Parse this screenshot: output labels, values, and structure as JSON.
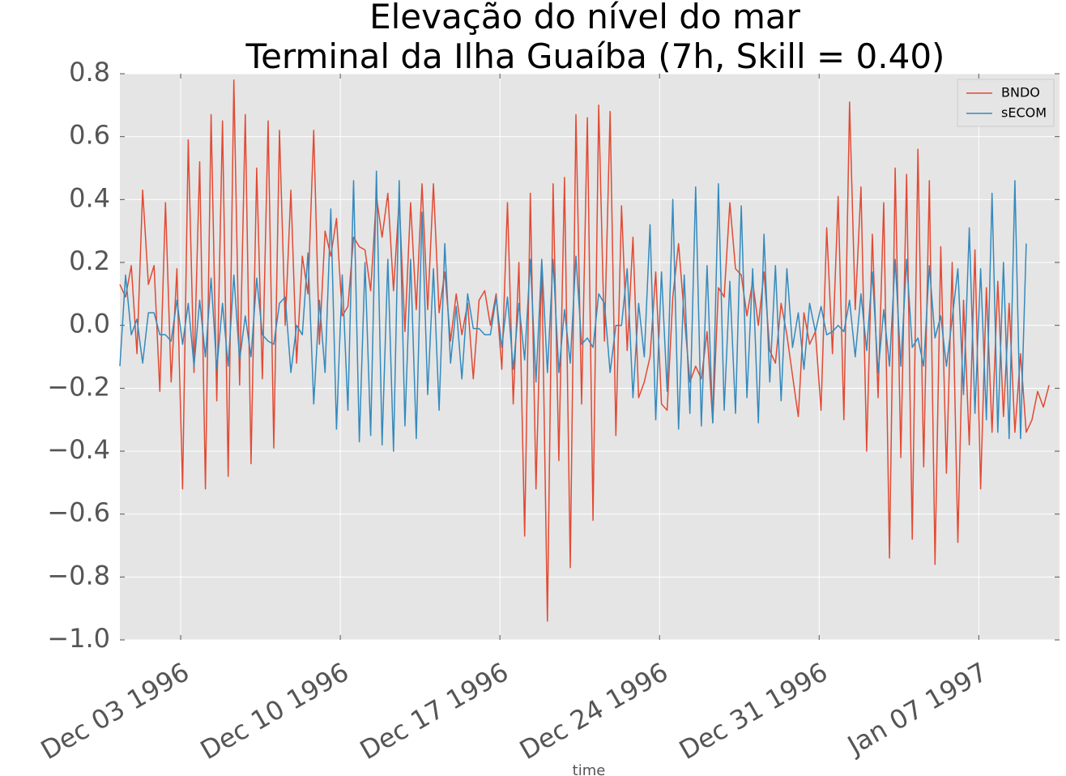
{
  "chart_data": {
    "type": "line",
    "title": [
      "Elevação do nível do mar",
      "Terminal da Ilha Guaíba (7h, Skill = 0.40)"
    ],
    "xlabel": "time",
    "ylabel": "",
    "x_type": "date",
    "xlim": [
      "1996-11-30T08:00",
      "1997-01-10T13:00"
    ],
    "ylim": [
      -1.0,
      0.8
    ],
    "yticks": [
      0.8,
      0.6,
      0.4,
      0.2,
      0.0,
      -0.2,
      -0.4,
      -0.6,
      -0.8,
      -1.0
    ],
    "ytick_labels": [
      "0.8",
      "0.6",
      "0.4",
      "0.2",
      "0.0",
      "−0.2",
      "−0.4",
      "−0.6",
      "−0.8",
      "−1.0"
    ],
    "xticks": [
      "1996-12-03",
      "1996-12-10",
      "1996-12-17",
      "1996-12-24",
      "1996-12-31",
      "1997-01-07"
    ],
    "xtick_labels": [
      "Dec 03 1996",
      "Dec 10 1996",
      "Dec 17 1996",
      "Dec 24 1996",
      "Dec 31 1996",
      "Jan 07 1997"
    ],
    "grid": true,
    "legend_position": "top-right",
    "x_start": "1996-11-30T08:00",
    "x_step_hours": 6,
    "series": [
      {
        "name": "BNDO",
        "color": "#E24A33",
        "values": [
          0.13,
          0.09,
          0.19,
          -0.09,
          0.43,
          0.13,
          0.19,
          -0.21,
          0.39,
          -0.18,
          0.18,
          -0.52,
          0.59,
          -0.15,
          0.52,
          -0.52,
          0.67,
          -0.24,
          0.65,
          -0.48,
          0.78,
          -0.19,
          0.67,
          -0.44,
          0.5,
          -0.17,
          0.65,
          -0.39,
          0.62,
          -0.0,
          0.43,
          -0.12,
          0.22,
          0.1,
          0.62,
          -0.06,
          0.3,
          0.22,
          0.34,
          0.03,
          0.06,
          0.28,
          0.25,
          0.24,
          0.11,
          0.41,
          0.28,
          0.42,
          0.11,
          0.4,
          -0.02,
          0.39,
          0.05,
          0.45,
          0.05,
          0.45,
          0.04,
          0.17,
          -0.05,
          0.1,
          -0.03,
          0.07,
          -0.17,
          0.08,
          0.11,
          0.0,
          0.1,
          -0.14,
          0.39,
          -0.25,
          0.2,
          -0.67,
          0.42,
          -0.52,
          0.2,
          -0.94,
          0.45,
          -0.43,
          0.47,
          -0.77,
          0.67,
          -0.25,
          0.66,
          -0.62,
          0.7,
          -0.05,
          0.68,
          -0.35,
          0.38,
          -0.08,
          0.28,
          -0.23,
          -0.18,
          -0.1,
          0.17,
          -0.25,
          -0.27,
          0.09,
          0.26,
          0.03,
          -0.18,
          -0.13,
          -0.17,
          -0.02,
          -0.31,
          0.12,
          0.09,
          0.39,
          0.18,
          0.16,
          0.03,
          0.14,
          0.0,
          0.17,
          -0.08,
          -0.12,
          0.07,
          -0.03,
          -0.16,
          -0.29,
          0.04,
          -0.06,
          -0.02,
          -0.27,
          0.31,
          -0.09,
          0.41,
          -0.3,
          0.71,
          0.05,
          0.44,
          -0.4,
          0.29,
          -0.23,
          0.39,
          -0.74,
          0.5,
          -0.42,
          0.48,
          -0.68,
          0.56,
          -0.45,
          0.46,
          -0.76,
          0.25,
          -0.47,
          0.2,
          -0.69,
          0.08,
          -0.38,
          0.24,
          -0.52,
          0.12,
          -0.34,
          0.14,
          -0.29,
          0.07,
          -0.34,
          -0.09,
          -0.34,
          -0.3,
          -0.21,
          -0.26,
          -0.19
        ]
      },
      {
        "name": "sECOM",
        "color": "#348ABD",
        "values": [
          -0.13,
          0.16,
          -0.03,
          0.02,
          -0.12,
          0.04,
          0.04,
          -0.03,
          -0.03,
          -0.05,
          0.08,
          -0.06,
          0.07,
          -0.13,
          0.08,
          -0.1,
          0.15,
          -0.14,
          0.07,
          -0.13,
          0.16,
          -0.11,
          0.03,
          -0.1,
          0.15,
          -0.03,
          -0.05,
          -0.06,
          0.07,
          0.09,
          -0.15,
          0.0,
          -0.03,
          0.23,
          -0.25,
          0.08,
          -0.15,
          0.37,
          -0.33,
          0.16,
          -0.27,
          0.46,
          -0.37,
          0.2,
          -0.35,
          0.49,
          -0.38,
          0.21,
          -0.4,
          0.46,
          -0.32,
          0.21,
          -0.36,
          0.36,
          -0.22,
          0.18,
          -0.27,
          0.26,
          -0.12,
          0.06,
          -0.17,
          0.1,
          -0.01,
          -0.01,
          -0.03,
          -0.03,
          0.09,
          -0.07,
          0.09,
          -0.14,
          0.07,
          -0.11,
          0.21,
          -0.18,
          0.21,
          -0.15,
          0.21,
          -0.15,
          0.05,
          -0.12,
          0.22,
          -0.06,
          -0.04,
          -0.07,
          0.1,
          0.07,
          -0.15,
          0.0,
          0.0,
          0.18,
          -0.23,
          0.07,
          -0.1,
          0.32,
          -0.3,
          0.17,
          -0.21,
          0.4,
          -0.33,
          0.16,
          -0.28,
          0.44,
          -0.32,
          0.19,
          -0.31,
          0.45,
          -0.27,
          0.14,
          -0.28,
          0.38,
          -0.23,
          0.18,
          -0.31,
          0.29,
          -0.18,
          0.19,
          -0.24,
          0.18,
          -0.07,
          0.04,
          -0.14,
          0.07,
          -0.02,
          0.06,
          -0.03,
          -0.02,
          0.0,
          -0.02,
          0.08,
          -0.1,
          0.1,
          -0.08,
          0.17,
          -0.15,
          0.05,
          -0.13,
          0.21,
          -0.13,
          0.21,
          -0.07,
          -0.04,
          -0.13,
          0.19,
          -0.04,
          0.03,
          -0.13,
          0.02,
          0.18,
          -0.22,
          0.31,
          -0.28,
          0.18,
          -0.3,
          0.42,
          -0.34,
          0.2,
          -0.36,
          0.46,
          -0.36,
          0.26
        ]
      }
    ]
  }
}
